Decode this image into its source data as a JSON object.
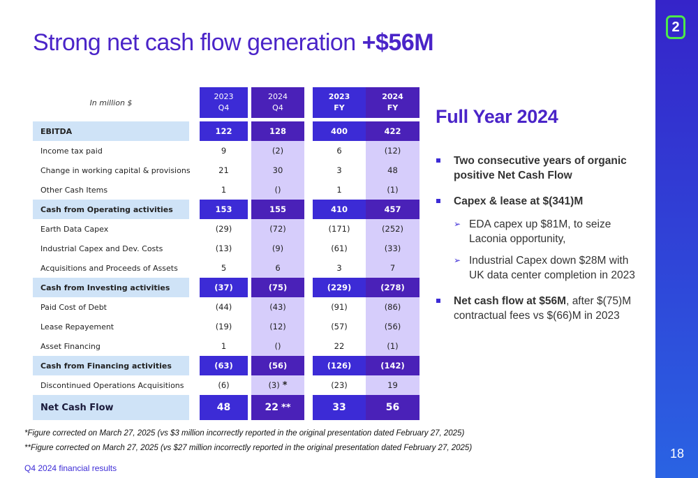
{
  "title": {
    "main": "Strong net cash flow generation ",
    "highlight": "+$56M"
  },
  "logo_text": "2",
  "page_number": "18",
  "footer": "Q4 2024 financial results",
  "table": {
    "unit_label": "In million $",
    "columns": [
      {
        "year": "2023",
        "period": "Q4"
      },
      {
        "year": "2024",
        "period": "Q4"
      },
      {
        "year": "2023",
        "period": "FY"
      },
      {
        "year": "2024",
        "period": "FY"
      }
    ],
    "rows": [
      {
        "label": "EBITDA",
        "bold": true,
        "values": [
          "122",
          "128",
          "400",
          "422"
        ]
      },
      {
        "label": "Income tax paid",
        "bold": false,
        "values": [
          "9",
          "(2)",
          "6",
          "(12)"
        ]
      },
      {
        "label": "Change in working capital & provisions",
        "bold": false,
        "values": [
          "21",
          "30",
          "3",
          "48"
        ]
      },
      {
        "label": "Other Cash Items",
        "bold": false,
        "values": [
          "1",
          "()",
          "1",
          "(1)"
        ]
      },
      {
        "label": "Cash from Operating activities",
        "bold": true,
        "values": [
          "153",
          "155",
          "410",
          "457"
        ]
      },
      {
        "label": "Earth Data Capex",
        "bold": false,
        "values": [
          "(29)",
          "(72)",
          "(171)",
          "(252)"
        ]
      },
      {
        "label": "Industrial Capex and Dev. Costs",
        "bold": false,
        "values": [
          "(13)",
          "(9)",
          "(61)",
          "(33)"
        ]
      },
      {
        "label": "Acquisitions and Proceeds of Assets",
        "bold": false,
        "values": [
          "5",
          "6",
          "3",
          "7"
        ]
      },
      {
        "label": "Cash from Investing activities",
        "bold": true,
        "values": [
          "(37)",
          "(75)",
          "(229)",
          "(278)"
        ]
      },
      {
        "label": "Paid Cost of Debt",
        "bold": false,
        "values": [
          "(44)",
          "(43)",
          "(91)",
          "(86)"
        ]
      },
      {
        "label": "Lease Repayement",
        "bold": false,
        "values": [
          "(19)",
          "(12)",
          "(57)",
          "(56)"
        ]
      },
      {
        "label": "Asset Financing",
        "bold": false,
        "values": [
          "1",
          "()",
          "22",
          "(1)"
        ]
      },
      {
        "label": "Cash from Financing activities",
        "bold": true,
        "values": [
          "(63)",
          "(56)",
          "(126)",
          "(142)"
        ]
      },
      {
        "label": "Discontinued Operations Acquisitions",
        "bold": false,
        "values": [
          "(6)",
          "(3)",
          "(23)",
          "19"
        ],
        "marker_col2": "*"
      },
      {
        "label": "Net Cash Flow",
        "bold": true,
        "net": true,
        "values": [
          "48",
          "22",
          "33",
          "56"
        ],
        "marker_col2": "**"
      }
    ]
  },
  "right_panel": {
    "heading": "Full Year 2024",
    "bullet1": "Two consecutive years of organic positive Net Cash Flow",
    "bullet2": "Capex & lease at $(341)M",
    "sub1": "EDA capex up $81M, to seize Laconia opportunity,",
    "sub2": "Industrial Capex down $28M with UK data center completion in 2023",
    "bullet3_bold": "Net cash flow at $56M",
    "bullet3_rest": ", after $(75)M contractual fees vs $(66)M in 2023"
  },
  "footnotes": [
    "*Figure corrected on March 27, 2025 (vs $3 million incorrectly reported in the original presentation dated February 27, 2025)",
    "**Figure corrected on March 27, 2025 (vs $27 million incorrectly reported in the original presentation dated February 27, 2025)"
  ],
  "colors": {
    "brand": "#4a24c8",
    "accent": "#3c2bd6",
    "deep": "#4a21b8",
    "light_col": "#d6cdfb",
    "row_highlight": "#cfe3f7",
    "logo_border": "#4de84a"
  }
}
